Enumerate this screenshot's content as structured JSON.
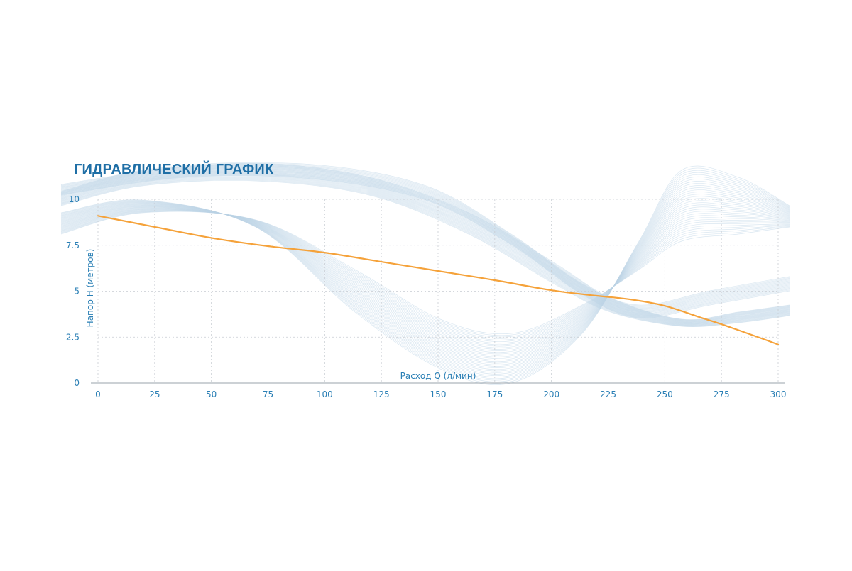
{
  "colors": {
    "title": "#1f6fa6",
    "axis_text": "#2a7fb5",
    "grid": "#c8ccd2",
    "series": "#f5a23a",
    "wave": "#bcd3e6"
  },
  "chart_data": {
    "type": "line",
    "title": "ГИДРАВЛИЧЕСКИЙ ГРАФИК",
    "xlabel": "Расход Q (л/мин)",
    "ylabel": "Напор H (метров)",
    "xlim": [
      0,
      300
    ],
    "ylim": [
      0,
      10
    ],
    "x_ticks": [
      0,
      25,
      50,
      75,
      100,
      125,
      150,
      175,
      200,
      225,
      250,
      275,
      300
    ],
    "y_ticks": [
      0,
      2.5,
      5,
      7.5,
      10
    ],
    "x_tick_labels": [
      "0",
      "25",
      "50",
      "75",
      "100",
      "125",
      "150",
      "175",
      "200",
      "225",
      "250",
      "275",
      "300"
    ],
    "y_tick_labels": [
      "0",
      "2.5",
      "5",
      "7.5",
      "10"
    ],
    "grid": true,
    "series": [
      {
        "x": [
          0,
          25,
          50,
          75,
          100,
          125,
          150,
          175,
          200,
          220,
          235,
          250,
          265,
          275,
          290,
          300
        ],
        "values": [
          9.1,
          8.5,
          7.9,
          7.45,
          7.1,
          6.6,
          6.1,
          5.6,
          5.05,
          4.75,
          4.55,
          4.2,
          3.6,
          3.2,
          2.55,
          2.1
        ]
      }
    ]
  }
}
